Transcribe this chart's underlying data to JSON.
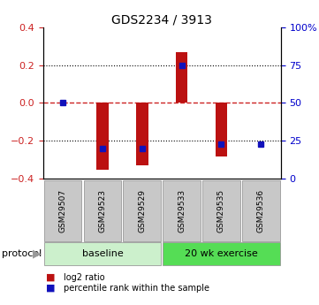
{
  "title": "GDS2234 / 3913",
  "samples": [
    "GSM29507",
    "GSM29523",
    "GSM29529",
    "GSM29533",
    "GSM29535",
    "GSM29536"
  ],
  "log2_ratio": [
    0.003,
    -0.355,
    -0.33,
    0.27,
    -0.285,
    0.003
  ],
  "percentile_rank": [
    50,
    20,
    20,
    75,
    23,
    23
  ],
  "ylim_left": [
    -0.4,
    0.4
  ],
  "ylim_right": [
    0,
    100
  ],
  "yticks_left": [
    -0.4,
    -0.2,
    0.0,
    0.2,
    0.4
  ],
  "yticks_right": [
    0,
    25,
    50,
    75,
    100
  ],
  "ytick_labels_right": [
    "0",
    "25",
    "50",
    "75",
    "100%"
  ],
  "bar_color": "#bb1111",
  "dot_color": "#1111bb",
  "zero_line_color": "#cc2222",
  "protocol_groups": [
    {
      "label": "baseline",
      "samples": [
        0,
        1,
        2
      ],
      "color": "#ccf0cc"
    },
    {
      "label": "20 wk exercise",
      "samples": [
        3,
        4,
        5
      ],
      "color": "#55dd55"
    }
  ],
  "protocol_label": "protocol",
  "legend_entries": [
    {
      "label": "log2 ratio",
      "color": "#bb1111"
    },
    {
      "label": "percentile rank within the sample",
      "color": "#1111bb"
    }
  ],
  "tick_label_color_left": "#cc2222",
  "tick_label_color_right": "#0000cc",
  "bar_width": 0.3,
  "dot_size": 5,
  "gray_box_color": "#c8c8c8",
  "gray_box_edge": "#999999"
}
